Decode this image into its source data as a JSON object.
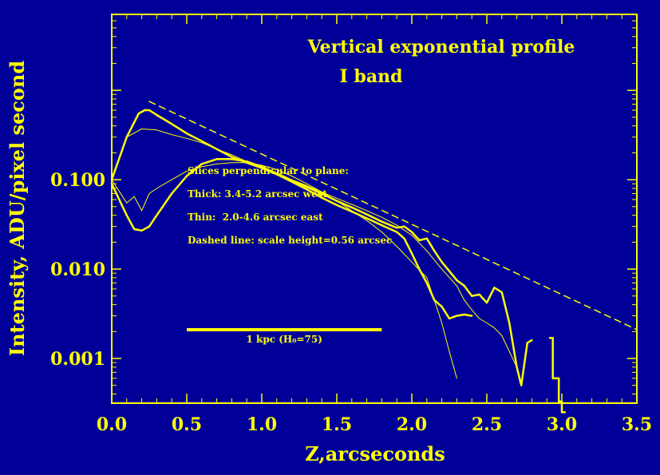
{
  "chart_data": {
    "type": "line",
    "title": "Vertical exponential profile",
    "subtitle": "I band",
    "xlabel": "Z,arcseconds",
    "ylabel": "Intensity, ADU/pixel second",
    "xlim": [
      0,
      3.5
    ],
    "ylim_log10": [
      -3.5,
      0.85
    ],
    "y_scale": "log",
    "x_ticks": [
      "0.0",
      "0.5",
      "1.0",
      "1.5",
      "2.0",
      "2.5",
      "3.0",
      "3.5"
    ],
    "y_tick_values": [
      0.001,
      0.01,
      0.1
    ],
    "y_ticks": [
      "0.001",
      "0.010",
      "0.100"
    ],
    "grid": false,
    "annotations": [
      "Slices perpendicular to plane:",
      "Thick: 3.4-5.2 arcsec west",
      "Thin:  2.0-4.6 arcsec east",
      "Dashed line: scale height=0.56 arcsec"
    ],
    "scale_bar_label": "1 kpc (H₀=75)",
    "scale_bar_x": [
      0.5,
      1.8
    ],
    "scale_bar_y": 0.0021,
    "color": "#ffff00",
    "background": "#000099",
    "series": [
      {
        "style": "dashed",
        "width": 1.5,
        "x": [
          0.25,
          3.5
        ],
        "y": [
          0.75,
          0.0021
        ]
      },
      {
        "style": "solid",
        "width": 2.5,
        "x": [
          0.0,
          0.1,
          0.18,
          0.22,
          0.25,
          0.3,
          0.4,
          0.5,
          0.6,
          0.7,
          0.8,
          0.9,
          1.0,
          1.1,
          1.2,
          1.3,
          1.4,
          1.5,
          1.6,
          1.7,
          1.8,
          1.9,
          1.95,
          2.0,
          2.05,
          2.1,
          2.15,
          2.2,
          2.25,
          2.3,
          2.35,
          2.4,
          2.45,
          2.5,
          2.55,
          2.6,
          2.65,
          2.7,
          2.73,
          2.77,
          2.8
        ],
        "y": [
          0.1,
          0.3,
          0.55,
          0.6,
          0.6,
          0.53,
          0.42,
          0.33,
          0.27,
          0.22,
          0.18,
          0.155,
          0.135,
          0.115,
          0.098,
          0.083,
          0.07,
          0.058,
          0.049,
          0.041,
          0.034,
          0.029,
          0.03,
          0.026,
          0.021,
          0.022,
          0.016,
          0.012,
          0.0095,
          0.0075,
          0.0065,
          0.005,
          0.0052,
          0.0042,
          0.0062,
          0.0055,
          0.0025,
          0.0008,
          0.0005,
          0.0015,
          0.0016
        ]
      },
      {
        "style": "solid",
        "width": 2.5,
        "x": [
          0.0,
          0.05,
          0.1,
          0.15,
          0.2,
          0.25,
          0.3,
          0.4,
          0.5,
          0.6,
          0.7,
          0.8,
          0.9,
          1.0,
          1.1,
          1.2,
          1.3,
          1.4,
          1.5,
          1.6,
          1.7,
          1.8,
          1.9,
          1.95,
          2.0,
          2.05,
          2.1,
          2.15,
          2.2,
          2.25,
          2.3,
          2.35,
          2.4,
          2.45,
          2.5
        ],
        "y": [
          0.09,
          0.06,
          0.04,
          0.028,
          0.027,
          0.03,
          0.04,
          0.07,
          0.11,
          0.15,
          0.17,
          0.17,
          0.16,
          0.14,
          0.115,
          0.095,
          0.078,
          0.063,
          0.052,
          0.044,
          0.037,
          0.031,
          0.026,
          0.022,
          0.015,
          0.01,
          0.007,
          0.0045,
          0.0038,
          0.0028,
          0.003,
          0.0031,
          0.003,
          0.0,
          0.0
        ],
        "trim": 33
      },
      {
        "style": "solid",
        "width": 1,
        "x": [
          0.0,
          0.1,
          0.2,
          0.3,
          0.4,
          0.5,
          0.6,
          0.7,
          0.8,
          0.9,
          1.0,
          1.1,
          1.2,
          1.3,
          1.4,
          1.5,
          1.6,
          1.7,
          1.8,
          1.9,
          2.0,
          2.1,
          2.2,
          2.3,
          2.35,
          2.4,
          2.45,
          2.5,
          2.55,
          2.6,
          2.65,
          2.7
        ],
        "y": [
          0.1,
          0.3,
          0.37,
          0.36,
          0.32,
          0.29,
          0.26,
          0.22,
          0.19,
          0.16,
          0.14,
          0.12,
          0.1,
          0.086,
          0.073,
          0.062,
          0.053,
          0.045,
          0.038,
          0.031,
          0.024,
          0.016,
          0.01,
          0.0065,
          0.0045,
          0.0035,
          0.0028,
          0.0025,
          0.0022,
          0.0018,
          0.0012,
          0.0008
        ]
      },
      {
        "style": "solid",
        "width": 1,
        "x": [
          0.0,
          0.1,
          0.15,
          0.2,
          0.25,
          0.3,
          0.4,
          0.5,
          0.6,
          0.7,
          0.8,
          0.9,
          1.0,
          1.1,
          1.2,
          1.3,
          1.4,
          1.5,
          1.6,
          1.7,
          1.8,
          1.9,
          2.0,
          2.1,
          2.15,
          2.2,
          2.25,
          2.3
        ],
        "y": [
          0.1,
          0.055,
          0.065,
          0.045,
          0.07,
          0.08,
          0.1,
          0.125,
          0.14,
          0.15,
          0.155,
          0.155,
          0.145,
          0.13,
          0.11,
          0.09,
          0.073,
          0.058,
          0.045,
          0.035,
          0.026,
          0.018,
          0.012,
          0.008,
          0.0045,
          0.0025,
          0.0012,
          0.0006
        ]
      },
      {
        "style": "solid",
        "width": 2.5,
        "x": [
          2.92,
          2.94,
          2.94,
          2.98,
          2.98,
          3.0,
          3.0,
          3.02
        ],
        "y": [
          0.0017,
          0.0017,
          0.0006,
          0.0006,
          0.00033,
          0.00033,
          0.00025,
          0.00025
        ]
      }
    ]
  }
}
